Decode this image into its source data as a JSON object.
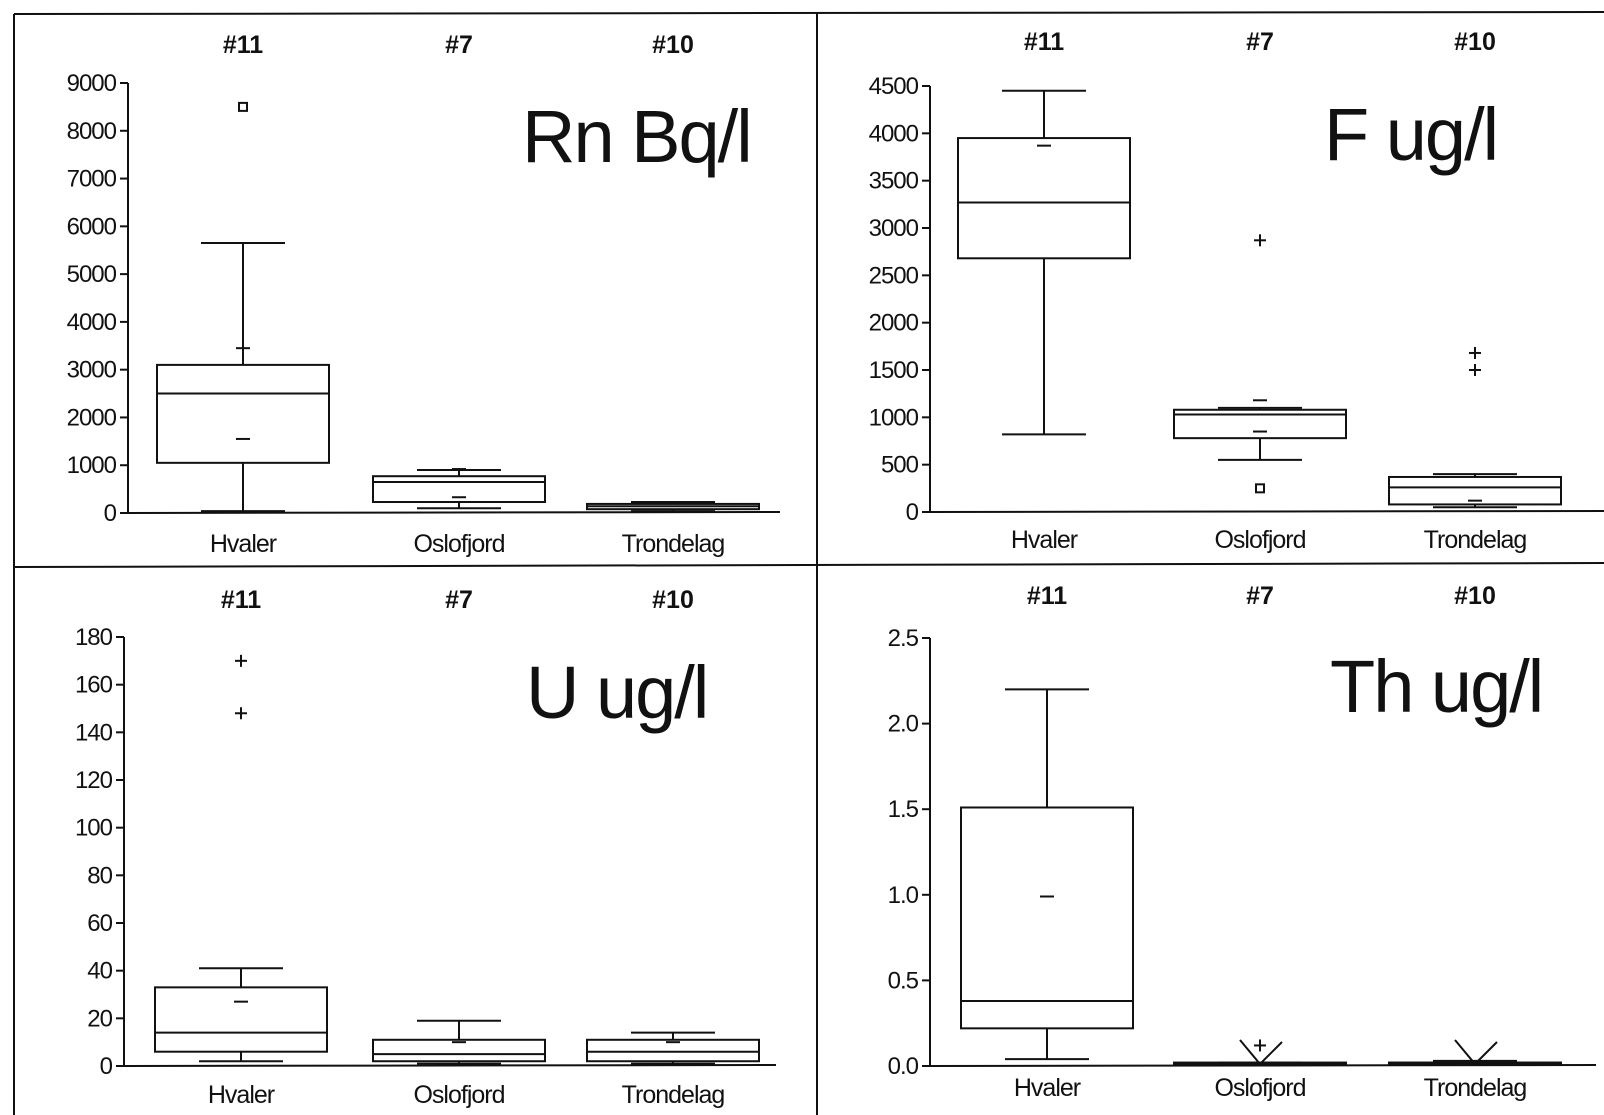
{
  "chart_data": [
    {
      "type": "box",
      "title": "Rn Bq/l",
      "categories": [
        "Hvaler",
        "Oslofjord",
        "Trondelag"
      ],
      "counts": [
        "#11",
        "#7",
        "#10"
      ],
      "ylim": [
        0,
        9000
      ],
      "yticks": [
        0,
        1000,
        2000,
        3000,
        4000,
        5000,
        6000,
        7000,
        8000,
        9000
      ],
      "boxes": [
        {
          "min": 40,
          "q1": 1050,
          "median": 2500,
          "q3": 3100,
          "max": 5650,
          "inner_marks": [
            1550,
            3450
          ],
          "outliers": [
            {
              "value": 8500,
              "symbol": "square"
            }
          ]
        },
        {
          "min": 100,
          "q1": 230,
          "median": 650,
          "q3": 770,
          "max": 900,
          "inner_marks": [
            330,
            920
          ],
          "outliers": []
        },
        {
          "min": 40,
          "q1": 80,
          "median": 140,
          "q3": 190,
          "max": 230,
          "inner_marks": [],
          "outliers": []
        }
      ]
    },
    {
      "type": "box",
      "title": "F ug/l",
      "categories": [
        "Hvaler",
        "Oslofjord",
        "Trondelag"
      ],
      "counts": [
        "#11",
        "#7",
        "#10"
      ],
      "ylim": [
        0,
        4500
      ],
      "yticks": [
        0,
        500,
        1000,
        1500,
        2000,
        2500,
        3000,
        3500,
        4000,
        4500
      ],
      "boxes": [
        {
          "min": 820,
          "q1": 2680,
          "median": 3270,
          "q3": 3950,
          "max": 4450,
          "inner_marks": [
            3870
          ],
          "outliers": []
        },
        {
          "min": 550,
          "q1": 780,
          "median": 1030,
          "q3": 1080,
          "max": 1100,
          "inner_marks": [
            850,
            1180
          ],
          "outliers": [
            {
              "value": 250,
              "symbol": "square"
            },
            {
              "value": 2870,
              "symbol": "plus"
            }
          ]
        },
        {
          "min": 50,
          "q1": 80,
          "median": 260,
          "q3": 370,
          "max": 400,
          "inner_marks": [
            120
          ],
          "outliers": [
            {
              "value": 1500,
              "symbol": "plus"
            },
            {
              "value": 1680,
              "symbol": "plus"
            }
          ]
        }
      ]
    },
    {
      "type": "box",
      "title": "U ug/l",
      "categories": [
        "Hvaler",
        "Oslofjord",
        "Trondelag"
      ],
      "counts": [
        "#11",
        "#7",
        "#10"
      ],
      "ylim": [
        0,
        180
      ],
      "yticks": [
        0,
        20,
        40,
        60,
        80,
        100,
        120,
        140,
        160,
        180
      ],
      "boxes": [
        {
          "min": 2,
          "q1": 6,
          "median": 14,
          "q3": 33,
          "max": 41,
          "inner_marks": [
            27
          ],
          "outliers": [
            {
              "value": 148,
              "symbol": "plus"
            },
            {
              "value": 170,
              "symbol": "plus"
            }
          ]
        },
        {
          "min": 1,
          "q1": 2,
          "median": 5,
          "q3": 11,
          "max": 19,
          "inner_marks": [
            10
          ],
          "outliers": []
        },
        {
          "min": 1,
          "q1": 2,
          "median": 6,
          "q3": 11,
          "max": 14,
          "inner_marks": [
            10
          ],
          "outliers": []
        }
      ]
    },
    {
      "type": "box",
      "title": "Th ug/l",
      "categories": [
        "Hvaler",
        "Oslofjord",
        "Trondelag"
      ],
      "counts": [
        "#11",
        "#7",
        "#10"
      ],
      "ylim": [
        0,
        2.5
      ],
      "yticks": [
        "0.0",
        "0.5",
        "1.0",
        "1.5",
        "2.0",
        "2.5"
      ],
      "boxes": [
        {
          "min": 0.04,
          "q1": 0.22,
          "median": 0.38,
          "q3": 1.51,
          "max": 2.2,
          "inner_marks": [
            0.99
          ],
          "outliers": []
        },
        {
          "min": 0.01,
          "q1": 0.01,
          "median": 0.01,
          "q3": 0.02,
          "max": 0.02,
          "inner_marks": [],
          "outliers": [
            {
              "value": 0.12,
              "symbol": "plus"
            }
          ]
        },
        {
          "min": 0.01,
          "q1": 0.01,
          "median": 0.02,
          "q3": 0.02,
          "max": 0.03,
          "inner_marks": [],
          "outliers": []
        }
      ]
    }
  ]
}
